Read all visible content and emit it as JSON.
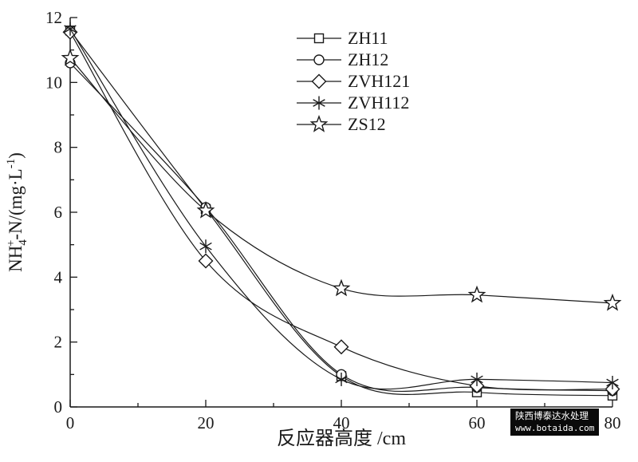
{
  "watermark": {
    "line1": "陕西博泰达水处理",
    "line2": "www.botaida.com"
  },
  "chart_data": {
    "type": "line",
    "x": [
      0,
      20,
      40,
      60,
      80
    ],
    "xlabel": "反应器高度 /cm",
    "ylabel_text": "NH4+-N/(mg·L-1)",
    "ylabel_parts": [
      {
        "t": "NH"
      },
      {
        "t": "4",
        "style": "sub"
      },
      {
        "t": "+",
        "style": "sup"
      },
      {
        "t": "-N/(mg·L"
      },
      {
        "t": "-1",
        "style": "sup"
      },
      {
        "t": ")"
      }
    ],
    "xlim": [
      0,
      80
    ],
    "ylim": [
      0,
      12
    ],
    "xticks": [
      0,
      20,
      40,
      60,
      80
    ],
    "yticks": [
      0,
      2,
      4,
      6,
      8,
      10,
      12
    ],
    "x_minor_step": 10,
    "y_minor_step": 1,
    "grid": false,
    "legend_position": "top-center",
    "line_color": "#1a1a1a",
    "series": [
      {
        "name": "ZH11",
        "marker": "square",
        "values": [
          11.6,
          6.1,
          0.95,
          0.45,
          0.35
        ]
      },
      {
        "name": "ZH12",
        "marker": "circle",
        "values": [
          10.6,
          6.15,
          1.0,
          0.6,
          0.5
        ]
      },
      {
        "name": "ZVH121",
        "marker": "diamond",
        "values": [
          11.55,
          4.5,
          1.85,
          0.65,
          0.55
        ]
      },
      {
        "name": "ZVH112",
        "marker": "asterisk",
        "values": [
          11.65,
          4.95,
          0.85,
          0.85,
          0.75
        ]
      },
      {
        "name": "ZS12",
        "marker": "star",
        "values": [
          10.75,
          6.05,
          3.65,
          3.45,
          3.2
        ]
      }
    ]
  }
}
